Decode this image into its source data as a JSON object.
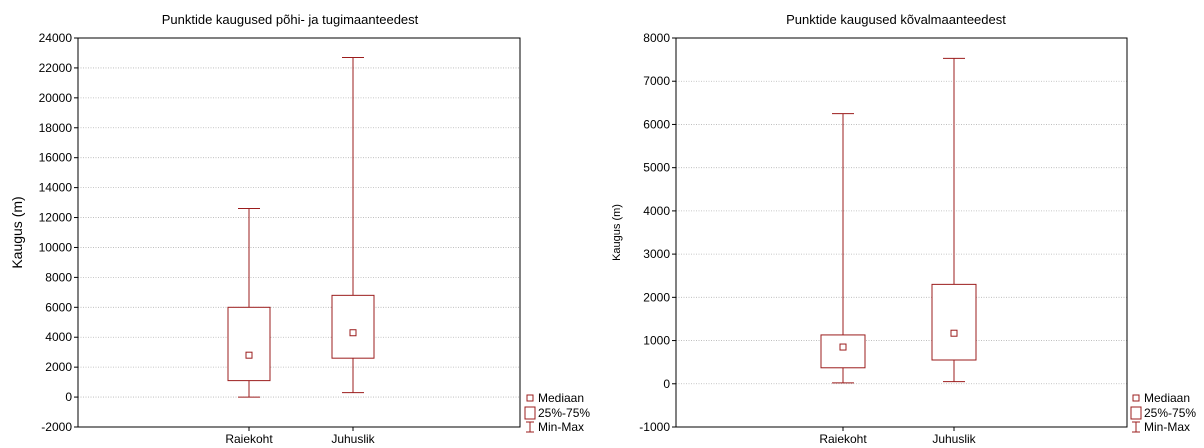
{
  "chart_data": [
    {
      "type": "boxplot",
      "title": "Punktide kaugused põhi- ja tugimaanteedest",
      "xlabel": "",
      "ylabel": "Kaugus (m)",
      "ylim": [
        -2000,
        24000
      ],
      "yticks": [
        -2000,
        0,
        2000,
        4000,
        6000,
        8000,
        10000,
        12000,
        14000,
        16000,
        18000,
        20000,
        22000,
        24000
      ],
      "grid": true,
      "categories": [
        "Raiekoht",
        "Juhuslik"
      ],
      "boxes": [
        {
          "category": "Raiekoht",
          "min": 0,
          "q1": 1100,
          "median": 2800,
          "q3": 6000,
          "max": 12600
        },
        {
          "category": "Juhuslik",
          "min": 300,
          "q1": 2600,
          "median": 4300,
          "q3": 6800,
          "max": 22700
        }
      ],
      "legend": [
        "Mediaan",
        "25%-75%",
        "Min-Max"
      ],
      "legend_position": "bottom-right",
      "color": "#9b1c1c"
    },
    {
      "type": "boxplot",
      "title": "Punktide kaugused kõvalmaanteedest",
      "xlabel": "",
      "ylabel": "Kaugus (m)",
      "ylim": [
        -1000,
        8000
      ],
      "yticks": [
        -1000,
        0,
        1000,
        2000,
        3000,
        4000,
        5000,
        6000,
        7000,
        8000
      ],
      "grid": true,
      "categories": [
        "Raiekoht",
        "Juhuslik"
      ],
      "boxes": [
        {
          "category": "Raiekoht",
          "min": 20,
          "q1": 370,
          "median": 850,
          "q3": 1130,
          "max": 6250
        },
        {
          "category": "Juhuslik",
          "min": 50,
          "q1": 550,
          "median": 1170,
          "q3": 2300,
          "max": 7530
        }
      ],
      "legend": [
        "Mediaan",
        "25%-75%",
        "Min-Max"
      ],
      "legend_position": "bottom-right",
      "color": "#9b1c1c"
    }
  ]
}
